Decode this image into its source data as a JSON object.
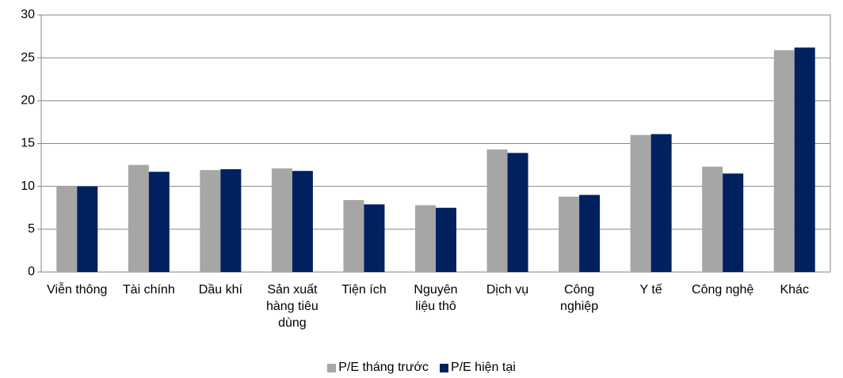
{
  "chart_data": {
    "type": "bar",
    "categories": [
      "Viễn thông",
      "Tài chính",
      "Dầu khí",
      "Sản xuất hàng tiêu dùng",
      "Tiện ích",
      "Nguyên liệu thô",
      "Dịch vụ",
      "Công nghiệp",
      "Y tế",
      "Công nghệ",
      "Khác"
    ],
    "series": [
      {
        "name": "P/E tháng trước",
        "color": "#a6a6a6",
        "values": [
          10.0,
          12.5,
          11.9,
          12.1,
          8.4,
          7.8,
          14.3,
          8.8,
          16.0,
          12.3,
          25.9
        ]
      },
      {
        "name": "P/E hiện tại",
        "color": "#002060",
        "values": [
          10.0,
          11.7,
          12.0,
          11.8,
          7.9,
          7.5,
          13.9,
          9.0,
          16.1,
          11.5,
          26.2
        ]
      }
    ],
    "ylim": [
      0,
      30
    ],
    "yticks": [
      0,
      5,
      10,
      15,
      20,
      25,
      30
    ],
    "grid": true,
    "legend": "bottom"
  }
}
